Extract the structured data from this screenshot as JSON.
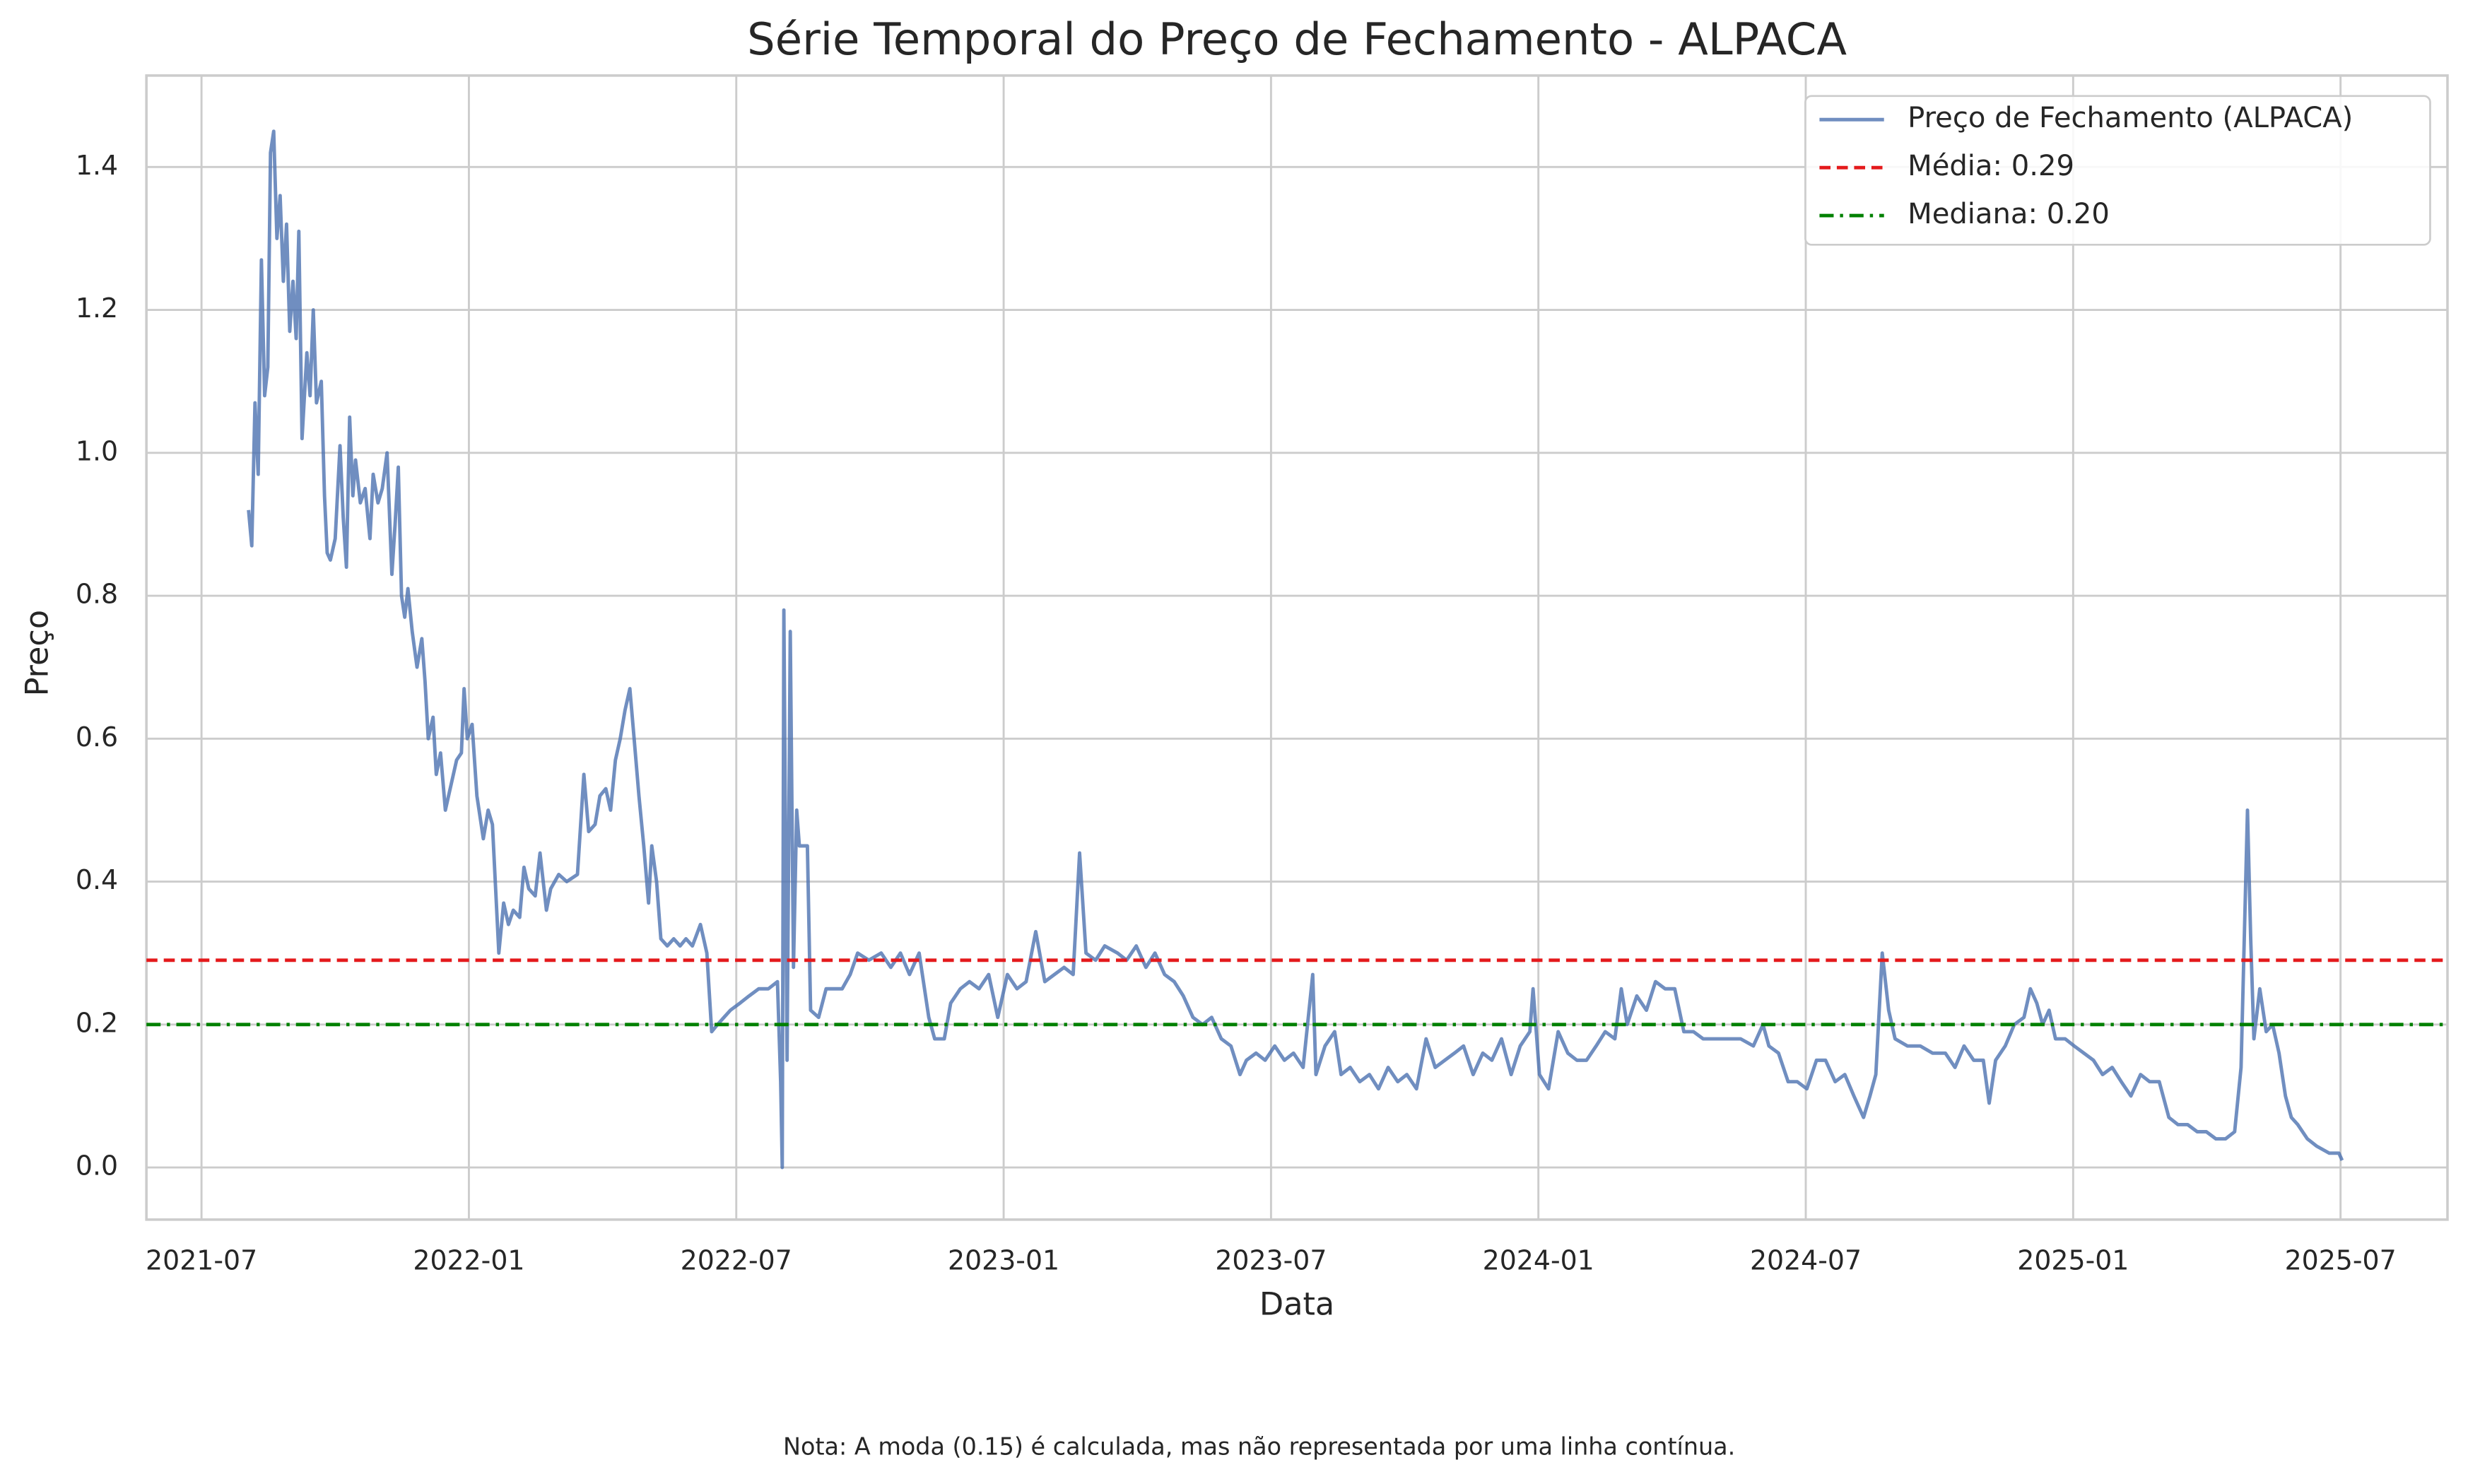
{
  "chart_data": {
    "type": "line",
    "title": "Série Temporal do Preço de Fechamento - ALPACA",
    "x_label": "Data",
    "y_label": "Preço",
    "annotation": "Nota: A moda (0.15) é calculada, mas não representada por uma linha contínua.",
    "xlim": [
      2021.397,
      2025.7
    ],
    "ylim": [
      -0.073,
      1.528
    ],
    "xticks": [
      {
        "value": 2021.5,
        "label": "2021-07"
      },
      {
        "value": 2022.0,
        "label": "2022-01"
      },
      {
        "value": 2022.5,
        "label": "2022-07"
      },
      {
        "value": 2023.0,
        "label": "2023-01"
      },
      {
        "value": 2023.5,
        "label": "2023-07"
      },
      {
        "value": 2024.0,
        "label": "2024-01"
      },
      {
        "value": 2024.5,
        "label": "2024-07"
      },
      {
        "value": 2025.0,
        "label": "2025-01"
      },
      {
        "value": 2025.5,
        "label": "2025-07"
      }
    ],
    "yticks": [
      {
        "value": 0,
        "label": "0.0"
      },
      0.2,
      0.4,
      0.6,
      0.8,
      {
        "value": 1,
        "label": "1.0"
      },
      1.2,
      1.4
    ],
    "grid": true,
    "legend": "upper right",
    "x": [
      2021.588,
      2021.594,
      2021.6,
      2021.606,
      2021.612,
      2021.618,
      2021.624,
      2021.629,
      2021.635,
      2021.641,
      2021.647,
      2021.653,
      2021.659,
      2021.665,
      2021.671,
      2021.677,
      2021.682,
      2021.688,
      2021.697,
      2021.703,
      2021.709,
      2021.715,
      2021.724,
      2021.73,
      2021.735,
      2021.741,
      2021.75,
      2021.759,
      2021.765,
      2021.771,
      2021.777,
      2021.783,
      2021.788,
      2021.797,
      2021.806,
      2021.815,
      2021.821,
      2021.83,
      2021.838,
      2021.847,
      2021.856,
      2021.862,
      2021.868,
      2021.874,
      2021.88,
      2021.886,
      2021.894,
      2021.903,
      2021.912,
      2021.918,
      2021.924,
      2021.933,
      2021.939,
      2021.947,
      2021.956,
      2021.965,
      2021.977,
      2021.986,
      2021.991,
      2021.997,
      2022.006,
      2022.015,
      2022.027,
      2022.036,
      2022.044,
      2022.056,
      2022.065,
      2022.074,
      2022.083,
      2022.095,
      2022.103,
      2022.112,
      2022.124,
      2022.133,
      2022.145,
      2022.153,
      2022.168,
      2022.183,
      2022.203,
      2022.215,
      2022.224,
      2022.236,
      2022.245,
      2022.256,
      2022.265,
      2022.274,
      2022.283,
      2022.292,
      2022.301,
      2022.309,
      2022.318,
      2022.327,
      2022.336,
      2022.342,
      2022.351,
      2022.359,
      2022.371,
      2022.383,
      2022.395,
      2022.406,
      2022.418,
      2022.433,
      2022.445,
      2022.454,
      2022.465,
      2022.477,
      2022.489,
      2022.507,
      2022.524,
      2022.542,
      2022.56,
      2022.577,
      2022.583,
      2022.586,
      2022.589,
      2022.595,
      2022.601,
      2022.607,
      2022.613,
      2022.618,
      2022.633,
      2022.639,
      2022.654,
      2022.668,
      2022.698,
      2022.713,
      2022.727,
      2022.748,
      2022.771,
      2022.789,
      2022.807,
      2022.824,
      2022.842,
      2022.86,
      2022.871,
      2022.889,
      2022.901,
      2022.919,
      2022.936,
      2022.954,
      2022.972,
      2022.989,
      2023.007,
      2023.025,
      2023.042,
      2023.06,
      2023.077,
      2023.095,
      2023.113,
      2023.13,
      2023.142,
      2023.154,
      2023.172,
      2023.189,
      2023.213,
      2023.23,
      2023.248,
      2023.266,
      2023.283,
      2023.301,
      2023.319,
      2023.336,
      2023.354,
      2023.372,
      2023.389,
      2023.407,
      2023.425,
      2023.442,
      2023.454,
      2023.472,
      2023.489,
      2023.507,
      2023.525,
      2023.542,
      2023.56,
      2023.578,
      2023.584,
      2023.601,
      2023.619,
      2023.631,
      2023.648,
      2023.666,
      2023.684,
      2023.701,
      2023.719,
      2023.737,
      2023.754,
      2023.772,
      2023.79,
      2023.807,
      2023.825,
      2023.843,
      2023.86,
      2023.878,
      2023.896,
      2023.913,
      2023.931,
      2023.949,
      2023.966,
      2023.984,
      2023.99,
      2024.002,
      2024.019,
      2024.037,
      2024.055,
      2024.072,
      2024.09,
      2024.108,
      2024.125,
      2024.143,
      2024.155,
      2024.166,
      2024.184,
      2024.202,
      2024.219,
      2024.237,
      2024.255,
      2024.272,
      2024.29,
      2024.308,
      2024.331,
      2024.355,
      2024.378,
      2024.402,
      2024.42,
      2024.431,
      2024.449,
      2024.467,
      2024.484,
      2024.502,
      2024.52,
      2024.537,
      2024.555,
      2024.573,
      2024.59,
      2024.608,
      2024.62,
      2024.631,
      2024.643,
      2024.655,
      2024.667,
      2024.69,
      2024.714,
      2024.737,
      2024.761,
      2024.779,
      2024.796,
      2024.814,
      2024.832,
      2024.843,
      2024.855,
      2024.873,
      2024.89,
      2024.908,
      2024.92,
      2024.932,
      2024.943,
      2024.955,
      2024.967,
      2024.985,
      2025.002,
      2025.02,
      2025.038,
      2025.055,
      2025.073,
      2025.09,
      2025.108,
      2025.126,
      2025.143,
      2025.161,
      2025.179,
      2025.196,
      2025.214,
      2025.232,
      2025.249,
      2025.267,
      2025.285,
      2025.302,
      2025.314,
      2025.326,
      2025.332,
      2025.338,
      2025.349,
      2025.361,
      2025.373,
      2025.385,
      2025.397,
      2025.408,
      2025.42,
      2025.438,
      2025.455,
      2025.479,
      2025.497,
      2025.503
    ],
    "series": [
      {
        "name": "Preço de Fechamento (ALPACA)",
        "color": "#4c72b0",
        "values": [
          0.92,
          0.87,
          1.07,
          0.97,
          1.27,
          1.08,
          1.12,
          1.42,
          1.45,
          1.3,
          1.36,
          1.24,
          1.32,
          1.17,
          1.24,
          1.16,
          1.31,
          1.02,
          1.14,
          1.08,
          1.2,
          1.07,
          1.1,
          0.94,
          0.86,
          0.85,
          0.88,
          1.01,
          0.91,
          0.84,
          1.05,
          0.94,
          0.99,
          0.93,
          0.95,
          0.88,
          0.97,
          0.93,
          0.95,
          1.0,
          0.83,
          0.9,
          0.98,
          0.8,
          0.77,
          0.81,
          0.75,
          0.7,
          0.74,
          0.68,
          0.6,
          0.63,
          0.55,
          0.58,
          0.5,
          0.53,
          0.57,
          0.58,
          0.67,
          0.6,
          0.62,
          0.52,
          0.46,
          0.5,
          0.48,
          0.3,
          0.37,
          0.34,
          0.36,
          0.35,
          0.42,
          0.39,
          0.38,
          0.44,
          0.36,
          0.39,
          0.41,
          0.4,
          0.41,
          0.55,
          0.47,
          0.48,
          0.52,
          0.53,
          0.5,
          0.57,
          0.6,
          0.64,
          0.67,
          0.6,
          0.52,
          0.45,
          0.37,
          0.45,
          0.4,
          0.32,
          0.31,
          0.32,
          0.31,
          0.32,
          0.31,
          0.34,
          0.3,
          0.19,
          0.2,
          0.21,
          0.22,
          0.23,
          0.24,
          0.25,
          0.25,
          0.26,
          0.12,
          0.0,
          0.78,
          0.15,
          0.75,
          0.28,
          0.5,
          0.45,
          0.45,
          0.22,
          0.21,
          0.25,
          0.25,
          0.27,
          0.3,
          0.29,
          0.3,
          0.28,
          0.3,
          0.27,
          0.3,
          0.21,
          0.18,
          0.18,
          0.23,
          0.25,
          0.26,
          0.25,
          0.27,
          0.21,
          0.27,
          0.25,
          0.26,
          0.33,
          0.26,
          0.27,
          0.28,
          0.27,
          0.44,
          0.3,
          0.29,
          0.31,
          0.3,
          0.29,
          0.31,
          0.28,
          0.3,
          0.27,
          0.26,
          0.24,
          0.21,
          0.2,
          0.21,
          0.18,
          0.17,
          0.13,
          0.15,
          0.16,
          0.15,
          0.17,
          0.15,
          0.16,
          0.14,
          0.27,
          0.13,
          0.17,
          0.19,
          0.13,
          0.14,
          0.12,
          0.13,
          0.11,
          0.14,
          0.12,
          0.13,
          0.11,
          0.18,
          0.14,
          0.15,
          0.16,
          0.17,
          0.13,
          0.16,
          0.15,
          0.18,
          0.13,
          0.17,
          0.19,
          0.25,
          0.13,
          0.11,
          0.19,
          0.16,
          0.15,
          0.15,
          0.17,
          0.19,
          0.18,
          0.25,
          0.2,
          0.24,
          0.22,
          0.26,
          0.25,
          0.25,
          0.19,
          0.19,
          0.18,
          0.18,
          0.18,
          0.18,
          0.17,
          0.2,
          0.17,
          0.16,
          0.12,
          0.12,
          0.11,
          0.15,
          0.15,
          0.12,
          0.13,
          0.1,
          0.07,
          0.1,
          0.13,
          0.3,
          0.22,
          0.18,
          0.17,
          0.17,
          0.16,
          0.16,
          0.14,
          0.17,
          0.15,
          0.15,
          0.09,
          0.15,
          0.17,
          0.2,
          0.21,
          0.25,
          0.23,
          0.2,
          0.22,
          0.18,
          0.18,
          0.17,
          0.16,
          0.15,
          0.13,
          0.14,
          0.12,
          0.1,
          0.13,
          0.12,
          0.12,
          0.07,
          0.06,
          0.06,
          0.05,
          0.05,
          0.04,
          0.04,
          0.05,
          0.14,
          0.5,
          0.32,
          0.18,
          0.25,
          0.19,
          0.2,
          0.16,
          0.1,
          0.07,
          0.06,
          0.04,
          0.03,
          0.02,
          0.02,
          0.01
        ]
      }
    ],
    "hlines": [
      {
        "name": "Média: 0.29",
        "value": 0.29,
        "color": "#e41a1c",
        "style": "dashed"
      },
      {
        "name": "Mediana: 0.20",
        "value": 0.2,
        "color": "#008000",
        "style": "dashdot"
      }
    ]
  }
}
